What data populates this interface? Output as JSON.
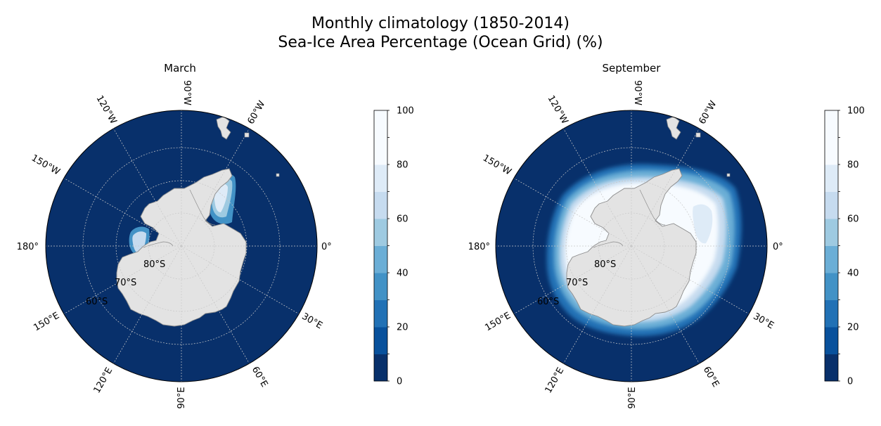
{
  "figure": {
    "title_line1": "Monthly climatology (1850-2014)",
    "title_line2": "Sea-Ice Area Percentage (Ocean Grid) (%)"
  },
  "panels": [
    {
      "title": "March"
    },
    {
      "title": "September"
    }
  ],
  "longitude_labels": [
    "0°",
    "30°E",
    "60°E",
    "90°E",
    "120°E",
    "150°E",
    "180°",
    "150°W",
    "120°W",
    "90°W",
    "60°W"
  ],
  "latitude_labels": [
    "80°S",
    "70°S",
    "60°S"
  ],
  "colorbar": {
    "ticks": [
      "0",
      "20",
      "40",
      "60",
      "80",
      "100"
    ],
    "levels": [
      0,
      10,
      20,
      30,
      40,
      50,
      60,
      70,
      80,
      90,
      100
    ],
    "colors": [
      "#08306b",
      "#08519c",
      "#2171b5",
      "#4292c6",
      "#6baed6",
      "#9ecae1",
      "#c6dbef",
      "#deebf7",
      "#f7fbff"
    ]
  },
  "colors": {
    "ocean": "#08306b",
    "land": "#e3e3e3",
    "coastline": "#8c8c8c",
    "grid": "#c8c8c8"
  }
}
